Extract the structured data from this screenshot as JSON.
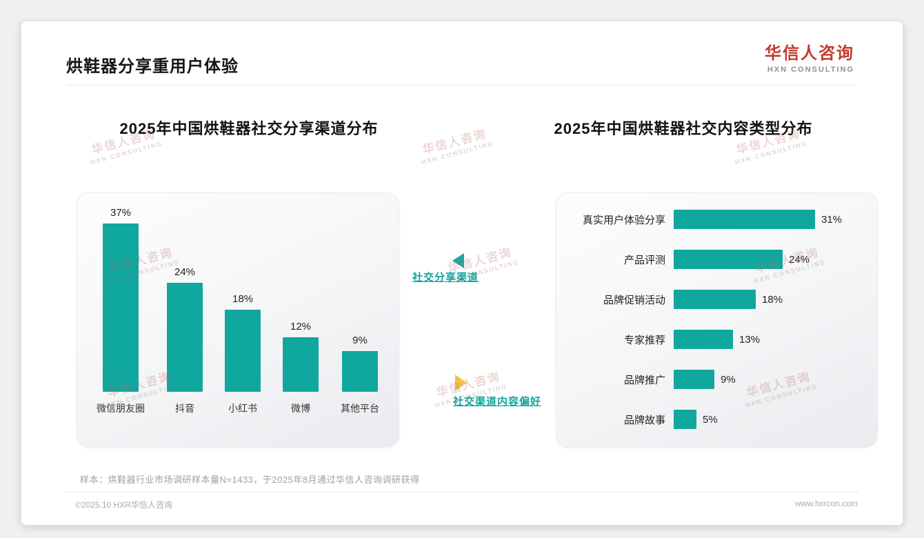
{
  "header": {
    "title": "烘鞋器分享重用户体验",
    "logo": {
      "cn": "华信人咨询",
      "en": "HXN CONSULTING"
    }
  },
  "watermark": {
    "cn": "华信人咨询",
    "en": "HXN CONSULTING"
  },
  "middle": {
    "top_label": "社交分享渠道",
    "bottom_label": "社交渠道内容偏好"
  },
  "chart_data": [
    {
      "type": "bar",
      "orientation": "vertical",
      "title": "2025年中国烘鞋器社交分享渠道分布",
      "categories": [
        "微信朋友圈",
        "抖音",
        "小红书",
        "微博",
        "其他平台"
      ],
      "values": [
        37,
        24,
        18,
        12,
        9
      ],
      "unit": "%",
      "ylim": [
        0,
        40
      ],
      "grid": false,
      "bar_color": "#10a79f"
    },
    {
      "type": "bar",
      "orientation": "horizontal",
      "title": "2025年中国烘鞋器社交内容类型分布",
      "categories": [
        "真实用户体验分享",
        "产品评测",
        "品牌促销活动",
        "专家推荐",
        "品牌推广",
        "品牌故事"
      ],
      "values": [
        31,
        24,
        18,
        13,
        9,
        5
      ],
      "unit": "%",
      "xlim": [
        0,
        35
      ],
      "grid": false,
      "bar_color": "#10a79f"
    }
  ],
  "notes": {
    "sample": "样本：烘鞋器行业市场调研样本量N=1433，于2025年8月通过华信人咨询调研获得"
  },
  "footer": {
    "left": "©2025.10 HXR华信人咨询",
    "right": "www.hxrcon.com"
  },
  "colors": {
    "accent_teal": "#10a79f",
    "accent_red": "#c2392e",
    "triangle_yellow": "#f3c24b"
  }
}
